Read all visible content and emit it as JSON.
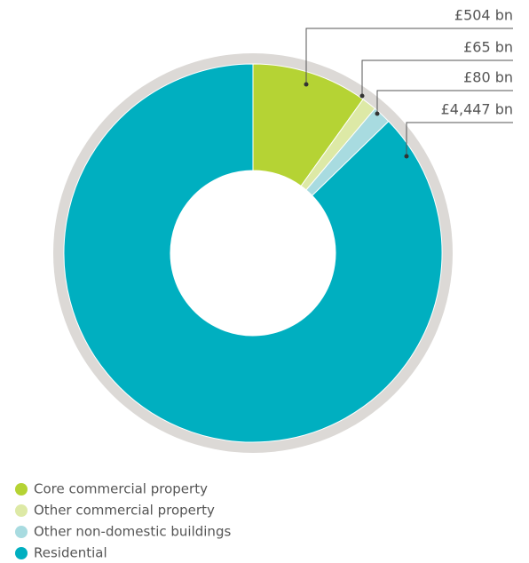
{
  "chart_data": {
    "type": "donut",
    "categories": [
      "Core commercial property",
      "Other commercial property",
      "Other non-domestic buildings",
      "Residential"
    ],
    "values": [
      504,
      65,
      80,
      4447
    ],
    "value_labels": [
      "£504 bn",
      "£65 bn",
      "£80 bn",
      "£4,447 bn"
    ],
    "colors": [
      "#b5d334",
      "#dde9a6",
      "#a8dbe0",
      "#00afc0"
    ],
    "legend": "bottom-left"
  }
}
